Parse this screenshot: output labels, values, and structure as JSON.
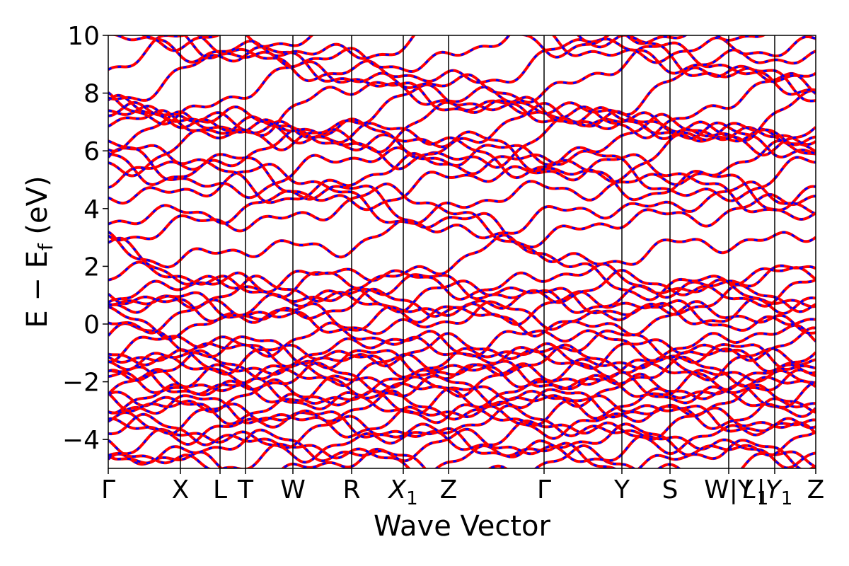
{
  "chart_data": {
    "type": "line",
    "xlabel": "Wave Vector",
    "ylabel": "E − E_f (eV)",
    "ylabel_parts": {
      "main": "E − E",
      "sub": "f",
      "unit": " (eV)"
    },
    "ylim": [
      -5,
      10
    ],
    "yticks": [
      -4,
      -2,
      0,
      2,
      4,
      6,
      8,
      10
    ],
    "ytick_labels": [
      "−4",
      "−2",
      "0",
      "2",
      "4",
      "6",
      "8",
      "10"
    ],
    "x_range": [
      0,
      100
    ],
    "high_symmetry_points": [
      {
        "label": "Γ",
        "x": 0
      },
      {
        "label": "X",
        "x": 10.2
      },
      {
        "label": "L",
        "x": 15.8
      },
      {
        "label": "T",
        "x": 19.4
      },
      {
        "label": "W",
        "x": 26.1
      },
      {
        "label": "R",
        "x": 34.4
      },
      {
        "label": "X",
        "sub": "1",
        "x": 41.7
      },
      {
        "label": "Z",
        "x": 48.1
      },
      {
        "label": "Γ",
        "x": 61.6
      },
      {
        "label": "Y",
        "x": 72.6
      },
      {
        "label": "S",
        "x": 79.4
      },
      {
        "label": "W|Y",
        "x": 87.7
      },
      {
        "label": "L",
        "sub": "1",
        "x": 87.7,
        "offset": 1
      },
      {
        "label": "|Y",
        "sub": "1",
        "x": 94.2
      },
      {
        "label": "Z",
        "x": 100
      }
    ],
    "series": [
      {
        "color": "#ff0000",
        "style": "solid"
      },
      {
        "color": "#0000ff",
        "style": "dashed"
      }
    ],
    "bands_eV_at_gamma": [
      -4.9,
      -4.6,
      -4.3,
      -4.1,
      -3.8,
      -3.5,
      -3.3,
      -3.0,
      -2.8,
      -2.6,
      -2.4,
      -2.2,
      -2.0,
      -1.8,
      -1.6,
      -1.4,
      -1.2,
      -1.0,
      -0.8,
      -0.6,
      0.15,
      0.25,
      0.55,
      0.7,
      1.0,
      1.2,
      1.5,
      1.85,
      2.85,
      3.7,
      3.9,
      4.5,
      5.0,
      5.3,
      5.5,
      6.0,
      6.3,
      6.5,
      6.6,
      7.0,
      7.2,
      7.5,
      8.0,
      8.6,
      9.0,
      9.5,
      9.8,
      10.2
    ]
  }
}
